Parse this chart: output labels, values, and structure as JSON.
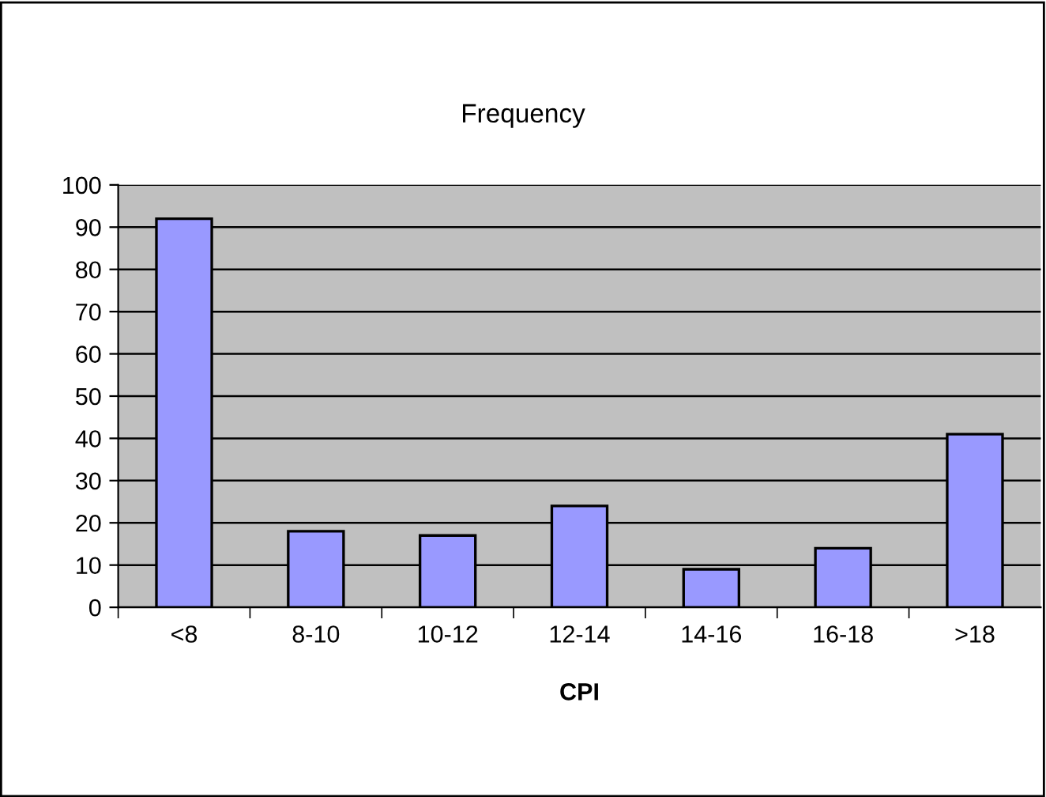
{
  "chart_data": {
    "type": "bar",
    "title": "Frequency",
    "xlabel": "CPI",
    "categories": [
      "<8",
      "8-10",
      "10-12",
      "12-14",
      "14-16",
      "16-18",
      ">18"
    ],
    "values": [
      92,
      18,
      17,
      24,
      9,
      14,
      41
    ],
    "color": "#9999ff",
    "ylim": [
      0,
      100
    ],
    "yticks": [
      0,
      10,
      20,
      30,
      40,
      50,
      60,
      70,
      80,
      90,
      100
    ],
    "grid": "y"
  }
}
